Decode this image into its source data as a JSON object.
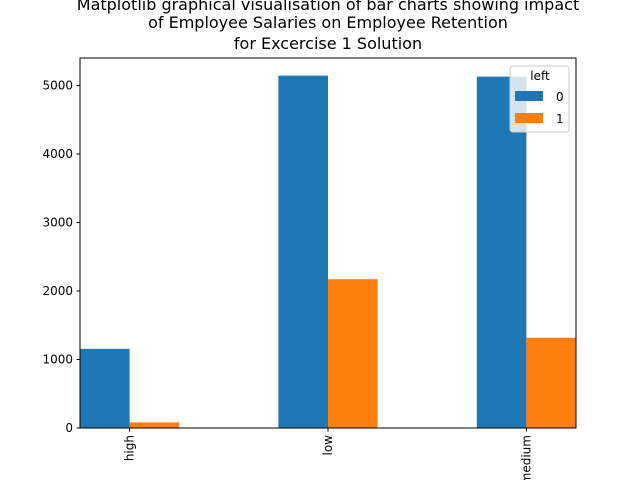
{
  "chart_data": {
    "type": "bar",
    "title": "Matplotlib graphical visualisation of bar charts showing impact of Employee Salaries on Employee Retention for Excercise 1 Solution",
    "title_lines": [
      "Matplotlib graphical visualisation of bar charts showing impact",
      "of Employee Salaries on Employee Retention",
      "for Excercise 1 Solution"
    ],
    "categories": [
      "high",
      "low",
      "medium"
    ],
    "series": [
      {
        "name": "0",
        "values": [
          1155,
          5144,
          5129
        ],
        "color": "#1f77b4"
      },
      {
        "name": "1",
        "values": [
          82,
          2172,
          1317
        ],
        "color": "#ff7f0e"
      }
    ],
    "xlabel": "",
    "ylabel": "",
    "ylim": [
      0,
      5401
    ],
    "yticks": [
      0,
      1000,
      2000,
      3000,
      4000,
      5000
    ],
    "ytick_labels": [
      "0",
      "1000",
      "2000",
      "3000",
      "4000",
      "5000"
    ],
    "legend": {
      "title": "left",
      "position": "top-right"
    },
    "grid": false
  }
}
